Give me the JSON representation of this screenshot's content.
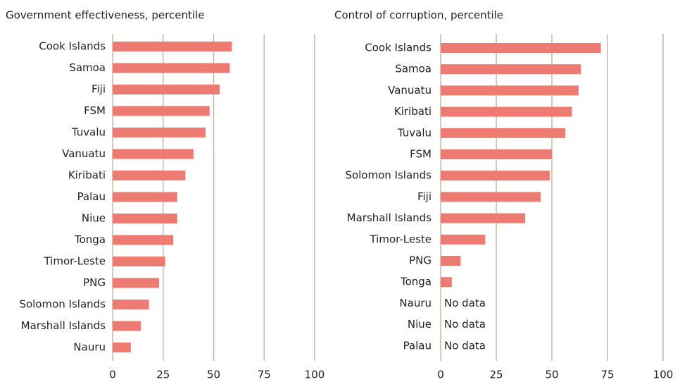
{
  "chart_data": [
    {
      "type": "bar",
      "orientation": "horizontal",
      "title": "Government effectiveness, percentile",
      "categories": [
        "Cook Islands",
        "Samoa",
        "Fiji",
        "FSM",
        "Tuvalu",
        "Vanuatu",
        "Kiribati",
        "Palau",
        "Niue",
        "Tonga",
        "Timor-Leste",
        "PNG",
        "Solomon Islands",
        "Marshall Islands",
        "Nauru"
      ],
      "values": [
        59,
        58,
        53,
        48,
        46,
        40,
        36,
        32,
        32,
        30,
        26,
        23,
        18,
        14,
        9
      ],
      "color": "#ee7b72",
      "xlim": [
        0,
        100
      ],
      "xticks": [
        0,
        25,
        50,
        75,
        100
      ],
      "grid": true
    },
    {
      "type": "bar",
      "orientation": "horizontal",
      "title": "Control of corruption, percentile",
      "categories": [
        "Cook Islands",
        "Samoa",
        "Vanuatu",
        "Kiribati",
        "Tuvalu",
        "FSM",
        "Solomon Islands",
        "Fiji",
        "Marshall Islands",
        "Timor-Leste",
        "PNG",
        "Tonga",
        "Nauru",
        "Niue",
        "Palau"
      ],
      "values": [
        72,
        63,
        62,
        59,
        56,
        50,
        49,
        45,
        38,
        20,
        9,
        5,
        null,
        null,
        null
      ],
      "value_labels": [
        null,
        null,
        null,
        null,
        null,
        null,
        null,
        null,
        null,
        null,
        null,
        null,
        "No data",
        "No data",
        "No data"
      ],
      "color": "#ee7b72",
      "xlim": [
        0,
        100
      ],
      "xticks": [
        0,
        25,
        50,
        75,
        100
      ],
      "grid": true
    }
  ]
}
